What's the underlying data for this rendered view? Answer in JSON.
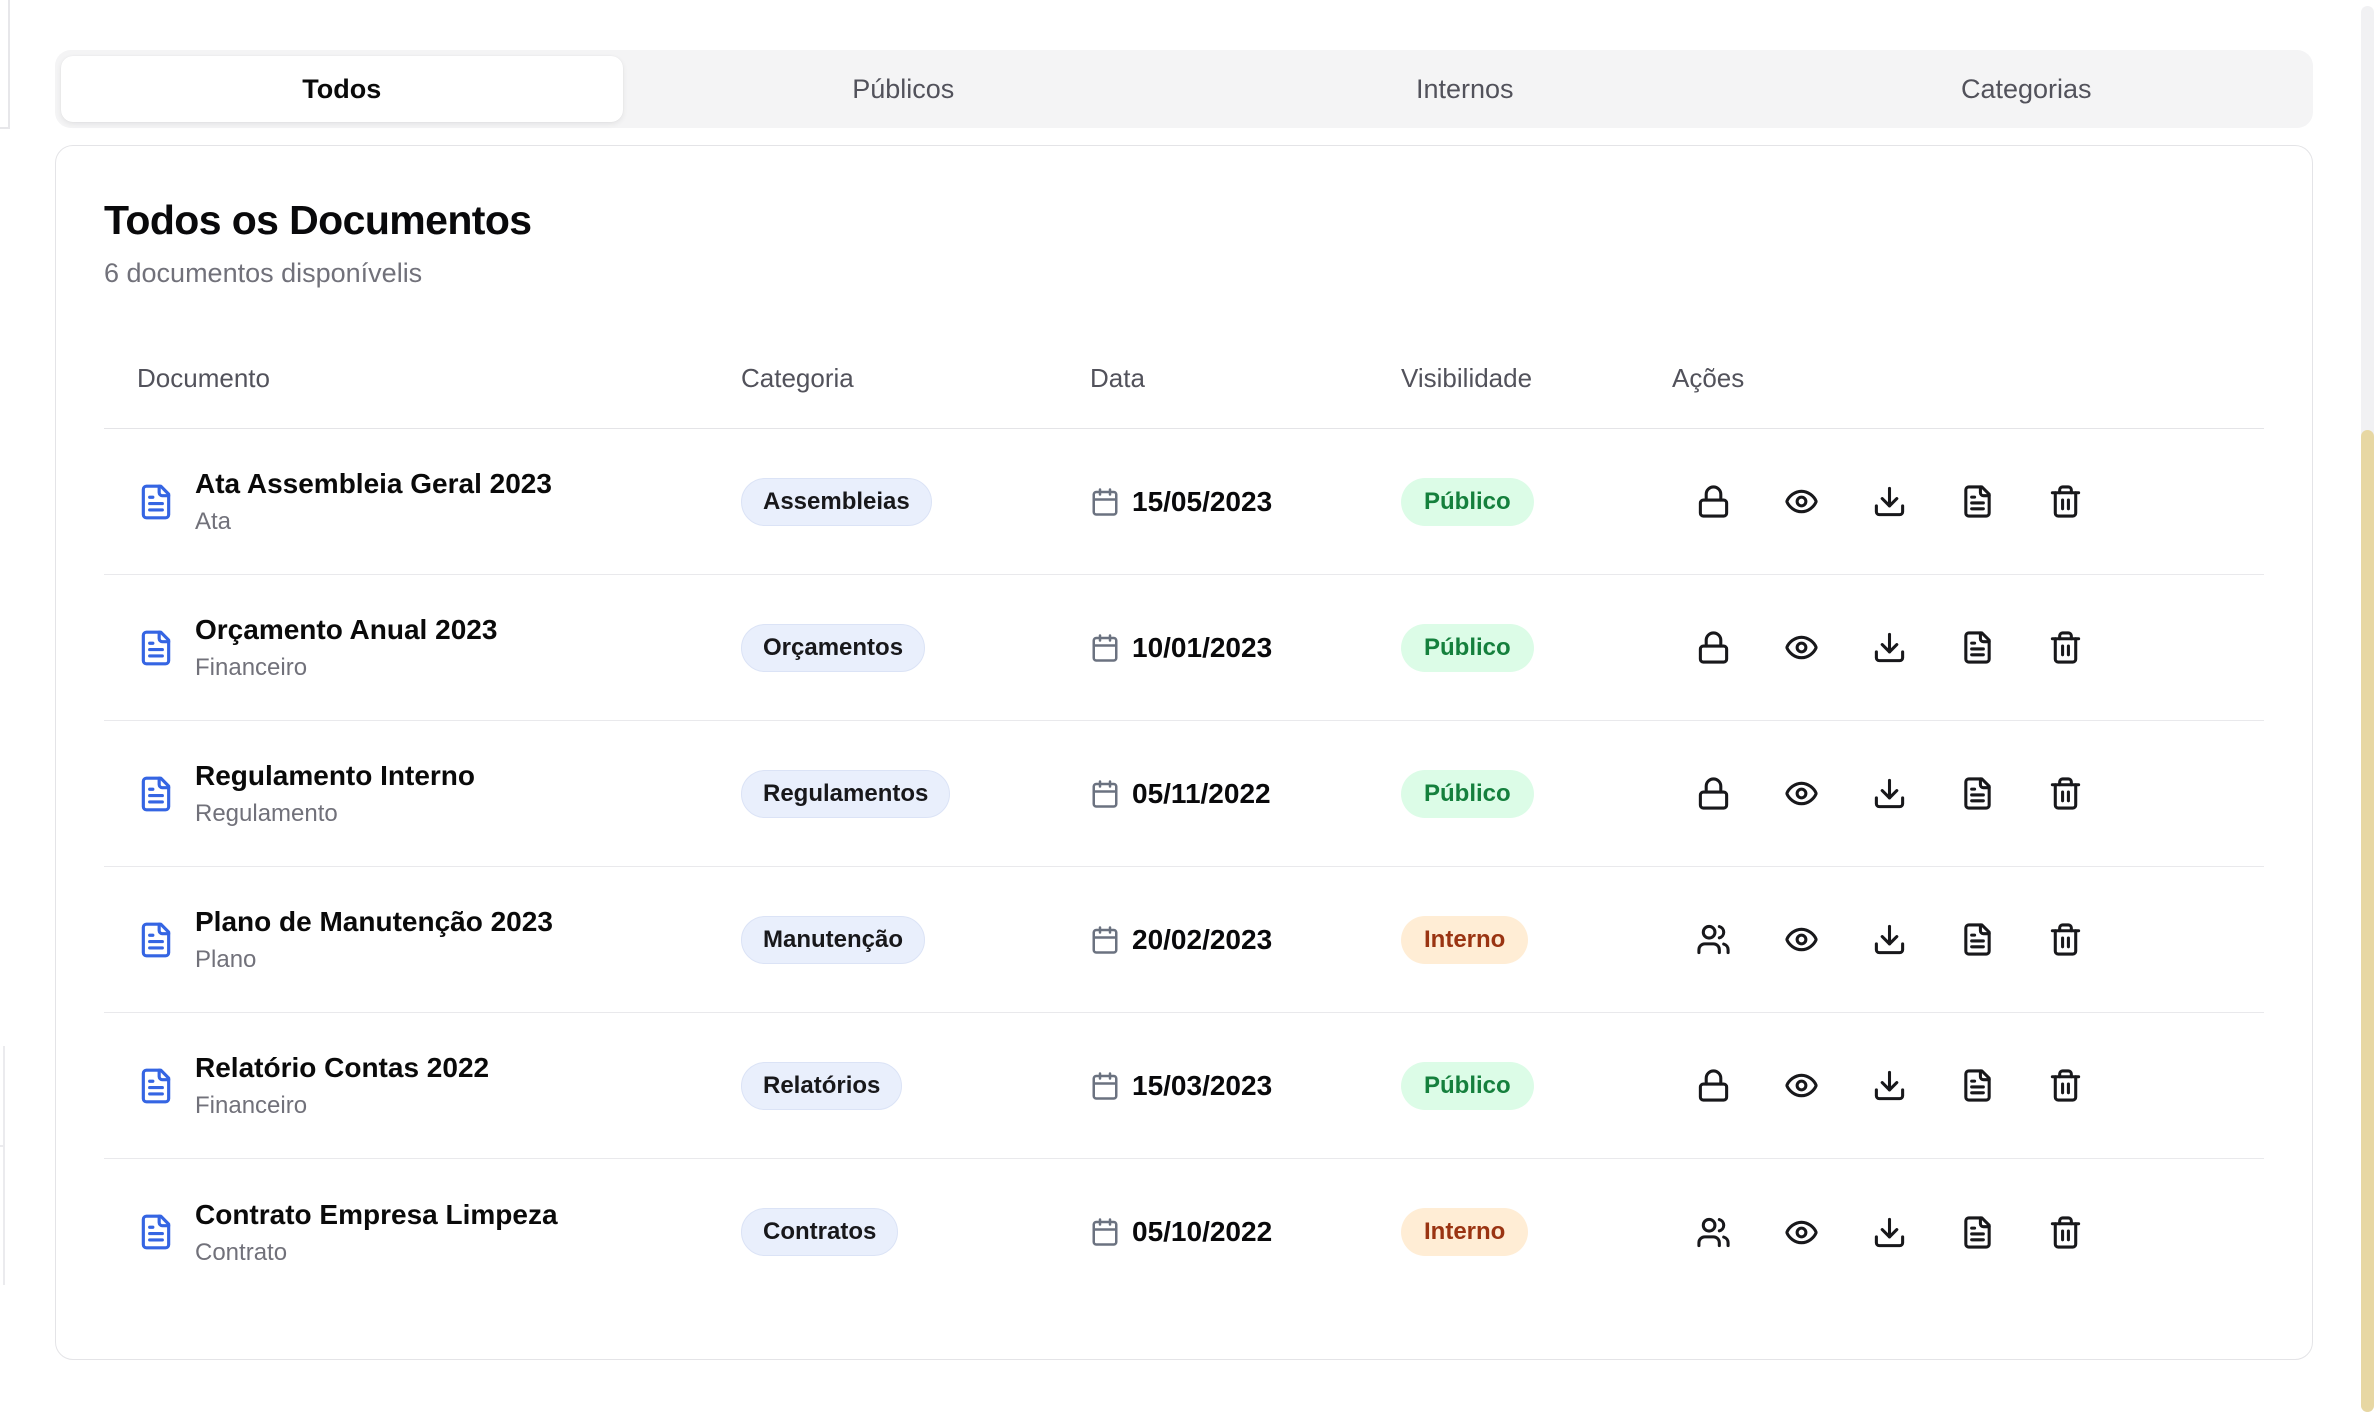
{
  "tabs": {
    "items": [
      {
        "label": "Todos",
        "active": true
      },
      {
        "label": "Públicos",
        "active": false
      },
      {
        "label": "Internos",
        "active": false
      },
      {
        "label": "Categorias",
        "active": false
      }
    ]
  },
  "panel": {
    "title": "Todos os Documentos",
    "subtitle": "6 documentos disponívelis"
  },
  "table": {
    "columns": [
      "Documento",
      "Categoria",
      "Data",
      "Visibilidade",
      "Ações"
    ],
    "rows": [
      {
        "name": "Ata Assembleia Geral 2023",
        "type": "Ata",
        "category": "Assembleias",
        "date": "15/05/2023",
        "visibility": "Público",
        "visibility_kind": "public"
      },
      {
        "name": "Orçamento Anual 2023",
        "type": "Financeiro",
        "category": "Orçamentos",
        "date": "10/01/2023",
        "visibility": "Público",
        "visibility_kind": "public"
      },
      {
        "name": "Regulamento Interno",
        "type": "Regulamento",
        "category": "Regulamentos",
        "date": "05/11/2022",
        "visibility": "Público",
        "visibility_kind": "public"
      },
      {
        "name": "Plano de Manutenção 2023",
        "type": "Plano",
        "category": "Manutenção",
        "date": "20/02/2023",
        "visibility": "Interno",
        "visibility_kind": "internal"
      },
      {
        "name": "Relatório Contas 2022",
        "type": "Financeiro",
        "category": "Relatórios",
        "date": "15/03/2023",
        "visibility": "Público",
        "visibility_kind": "public"
      },
      {
        "name": "Contrato Empresa Limpeza",
        "type": "Contrato",
        "category": "Contratos",
        "date": "05/10/2022",
        "visibility": "Interno",
        "visibility_kind": "internal"
      }
    ],
    "action_icons": {
      "first_when_public": "lock-icon",
      "first_when_internal": "users-icon",
      "common": [
        "eye-icon",
        "download-icon",
        "file-text-icon",
        "trash-icon"
      ]
    }
  },
  "colors": {
    "doc_icon_blue": "#3565e3",
    "category_badge_bg": "#e9effc",
    "category_badge_border": "#dbe3f6",
    "public_badge_bg": "#dcfce7",
    "public_badge_text": "#15803d",
    "internal_badge_bg": "#ffedd5",
    "internal_badge_text": "#9a3412",
    "scrollbar_thumb": "#e7d7a3",
    "scrollbar_track": "#f1f1f3"
  }
}
